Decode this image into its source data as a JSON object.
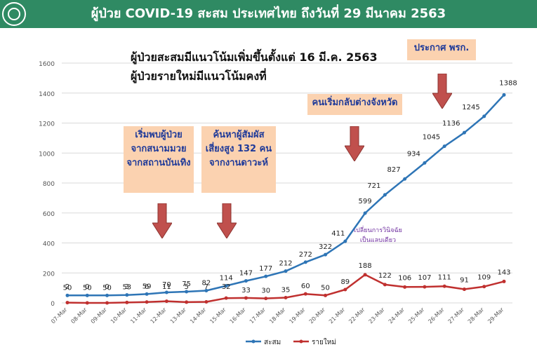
{
  "header": {
    "title": "ผู้ป่วย COVID-19 สะสม  ประเทศไทย ถึงวันที่ 29 มีนาคม 2563"
  },
  "headlines": {
    "line1": "ผู้ป่วยสะสมมีแนวโน้มเพิ่มขึ้นตั้งแต่ 16 มี.ค. 2563",
    "line2": "ผู้ป่วยรายใหม่มีแนวโน้มคงที่"
  },
  "callouts": {
    "stadium": [
      "เริ่มพบผู้ป่วย",
      "จากสนามมวย",
      "จากสถานบันเทิง"
    ],
    "contacts": [
      "ค้นหาผู้สัมผัส",
      "เสี่ยงสูง 132 คน",
      "จากงานดาวะห์"
    ],
    "travel": [
      "คนเริ่มกลับต่างจังหวัด"
    ],
    "emergency": [
      "ประกาศ พรก."
    ]
  },
  "note": [
    "เปลี่ยนการวินิจฉัย",
    "เป็นแลบเดียว"
  ],
  "colors": {
    "header": "#2f8a63",
    "cumulative": "#2e75b6",
    "new": "#c0302f",
    "callout_bg": "#fbd2b0",
    "callout_text": "#1f3a99",
    "arrow": "#c0504d"
  },
  "chart_data": {
    "type": "line",
    "categories": [
      "07-Mar",
      "08-Mar",
      "09-Mar",
      "10-Mar",
      "11-Mar",
      "12-Mar",
      "13-Mar",
      "14-Mar",
      "15-Mar",
      "16-Mar",
      "17-Mar",
      "18-Mar",
      "19-Mar",
      "20-Mar",
      "21-Mar",
      "22-Mar",
      "23-Mar",
      "24-Mar",
      "25-Mar",
      "26-Mar",
      "27-Mar",
      "28-Mar",
      "29-Mar"
    ],
    "series": [
      {
        "name": "สะสม",
        "values": [
          50,
          50,
          50,
          53,
          59,
          70,
          75,
          82,
          114,
          147,
          177,
          212,
          272,
          322,
          411,
          599,
          721,
          827,
          934,
          1045,
          1136,
          1245,
          1388
        ]
      },
      {
        "name": "รายใหม่",
        "values": [
          2,
          0,
          0,
          3,
          6,
          11,
          5,
          7,
          32,
          33,
          30,
          35,
          60,
          50,
          89,
          188,
          122,
          106,
          107,
          111,
          91,
          109,
          143
        ]
      }
    ],
    "yticks": [
      0,
      200,
      400,
      600,
      800,
      1000,
      1200,
      1400,
      1600
    ],
    "ylim": [
      0,
      1600
    ],
    "grid": "horizontal",
    "legend": "bottom"
  }
}
